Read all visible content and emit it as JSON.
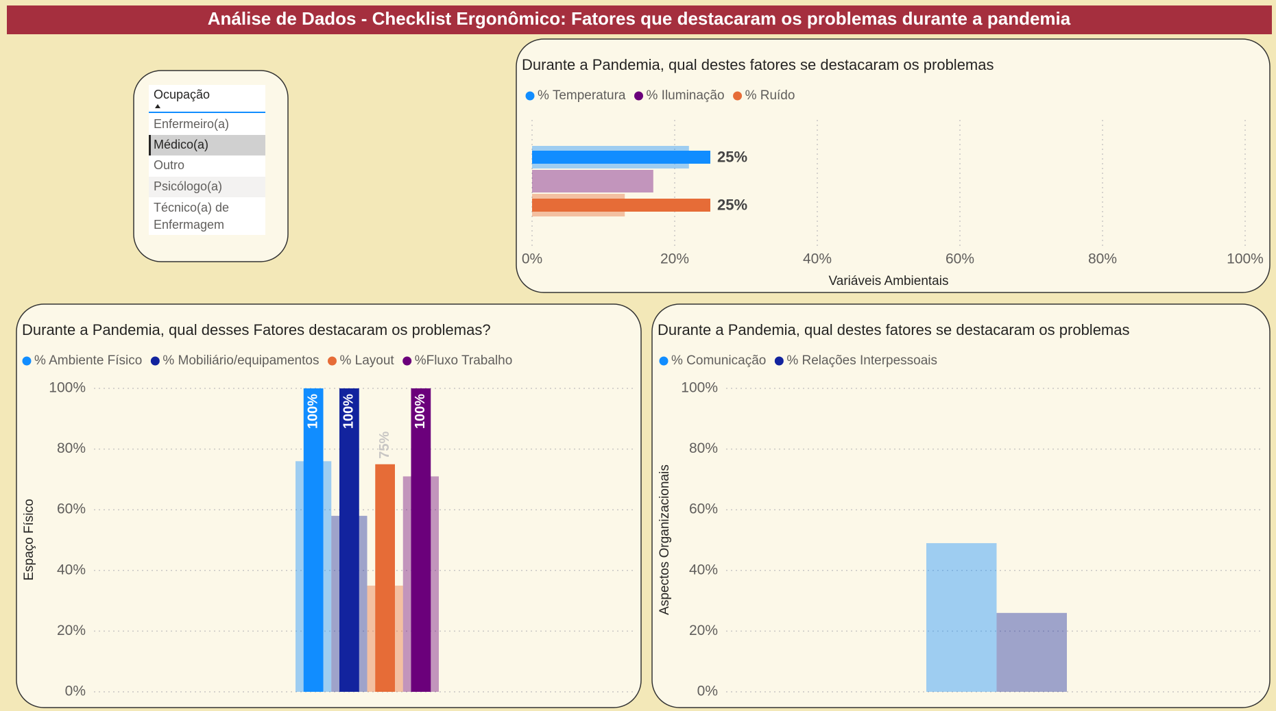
{
  "header": {
    "title": "Análise de Dados - Checklist Ergonômico: Fatores que destacaram os problemas durante a pandemia"
  },
  "slicer": {
    "title": "Ocupação",
    "items": [
      "Enfermeiro(a)",
      "Médico(a)",
      "Outro",
      "Psicólogo(a)",
      "Técnico(a) de Enfermagem"
    ],
    "selected": "Médico(a)"
  },
  "chart_data": [
    {
      "type": "bar",
      "orientation": "horizontal",
      "title": "Durante a Pandemia, qual destes fatores se destacaram os problemas",
      "categories": [
        null
      ],
      "series": [
        {
          "name": "% Temperatura",
          "color": "#118dff",
          "values": [
            25
          ],
          "value_labels": [
            "25%"
          ],
          "total_values": [
            22
          ]
        },
        {
          "name": "% Iluminação",
          "color": "#6b007b",
          "values": [
            null
          ],
          "total_values": [
            17
          ]
        },
        {
          "name": "% Ruído",
          "color": "#e66c37",
          "values": [
            25
          ],
          "value_labels": [
            "25%"
          ],
          "total_values": [
            13
          ]
        }
      ],
      "xlabel": "Variáveis Ambientais",
      "xlim": [
        0,
        100
      ],
      "xticks": [
        {
          "value": 0,
          "label": "0%"
        },
        {
          "value": 20,
          "label": "20%"
        },
        {
          "value": 40,
          "label": "40%"
        },
        {
          "value": 60,
          "label": "60%"
        },
        {
          "value": 80,
          "label": "80%"
        },
        {
          "value": 100,
          "label": "100%"
        }
      ],
      "grid": true
    },
    {
      "type": "bar",
      "orientation": "vertical",
      "title": "Durante a Pandemia, qual desses Fatores destacaram os problemas?",
      "categories": [
        null
      ],
      "series": [
        {
          "name": "% Ambiente Físico",
          "color": "#118dff",
          "values": [
            100
          ],
          "value_labels": [
            "100%"
          ],
          "total_values": [
            76
          ]
        },
        {
          "name": "% Mobiliário/equipamentos",
          "color": "#12239e",
          "values": [
            100
          ],
          "value_labels": [
            "100%"
          ],
          "total_values": [
            58
          ]
        },
        {
          "name": "% Layout",
          "color": "#e66c37",
          "values": [
            75
          ],
          "value_labels": [
            "75%"
          ],
          "total_values": [
            35
          ]
        },
        {
          "name": "%Fluxo Trabalho",
          "color": "#6b007b",
          "values": [
            100
          ],
          "value_labels": [
            "100%"
          ],
          "total_values": [
            71
          ]
        }
      ],
      "ylabel": "Espaço Físico",
      "ylim": [
        0,
        100
      ],
      "yticks": [
        {
          "value": 0,
          "label": "0%"
        },
        {
          "value": 20,
          "label": "20%"
        },
        {
          "value": 40,
          "label": "40%"
        },
        {
          "value": 60,
          "label": "60%"
        },
        {
          "value": 80,
          "label": "80%"
        },
        {
          "value": 100,
          "label": "100%"
        }
      ],
      "grid": true
    },
    {
      "type": "bar",
      "orientation": "vertical",
      "title": "Durante a Pandemia, qual destes fatores se destacaram os problemas",
      "categories": [
        null
      ],
      "series": [
        {
          "name": "% Comunicação",
          "color": "#118dff",
          "values": [
            null
          ],
          "total_values": [
            49
          ]
        },
        {
          "name": "% Relações Interpessoais",
          "color": "#12239e",
          "values": [
            null
          ],
          "total_values": [
            26
          ]
        }
      ],
      "ylabel": "Aspectos Organizacionais",
      "ylim": [
        0,
        100
      ],
      "yticks": [
        {
          "value": 0,
          "label": "0%"
        },
        {
          "value": 20,
          "label": "20%"
        },
        {
          "value": 40,
          "label": "40%"
        },
        {
          "value": 60,
          "label": "60%"
        },
        {
          "value": 80,
          "label": "80%"
        },
        {
          "value": 100,
          "label": "100%"
        }
      ],
      "grid": true
    }
  ]
}
